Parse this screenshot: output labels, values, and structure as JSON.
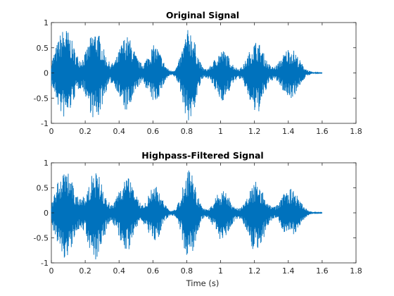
{
  "figure": {
    "background": "#ffffff",
    "series_color": "#0072bd",
    "axis_color": "#262626"
  },
  "chart_data": [
    {
      "type": "line",
      "title": "Original Signal",
      "xlabel": "",
      "ylabel": "",
      "xlim": [
        0,
        1.8
      ],
      "ylim": [
        -1,
        1
      ],
      "xticks": [
        0,
        0.2,
        0.4,
        0.6,
        0.8,
        1,
        1.2,
        1.4,
        1.6,
        1.8
      ],
      "yticks": [
        -1,
        -0.5,
        0,
        0.5,
        1
      ],
      "xtick_labels": [
        "0",
        "0.2",
        "0.4",
        "0.6",
        "0.8",
        "1",
        "1.2",
        "1.4",
        "1.6",
        "1.8"
      ],
      "ytick_labels": [
        "-1",
        "-0.5",
        "0",
        "0.5",
        "1"
      ],
      "grid": false,
      "series": [
        {
          "color": "#0072bd",
          "signal_end": 1.6,
          "bursts": [
            {
              "center": 0.08,
              "width": 0.05,
              "pos_peak": 0.89,
              "neg_peak": -0.91
            },
            {
              "center": 0.26,
              "width": 0.045,
              "pos_peak": 0.85,
              "neg_peak": -0.95
            },
            {
              "center": 0.445,
              "width": 0.045,
              "pos_peak": 0.73,
              "neg_peak": -0.77
            },
            {
              "center": 0.61,
              "width": 0.04,
              "pos_peak": 0.55,
              "neg_peak": -0.58
            },
            {
              "center": 0.815,
              "width": 0.038,
              "pos_peak": 0.88,
              "neg_peak": -0.98
            },
            {
              "center": 1.01,
              "width": 0.045,
              "pos_peak": 0.45,
              "neg_peak": -0.55
            },
            {
              "center": 1.21,
              "width": 0.045,
              "pos_peak": 0.63,
              "neg_peak": -0.82
            },
            {
              "center": 1.41,
              "width": 0.05,
              "pos_peak": 0.5,
              "neg_peak": -0.5
            }
          ]
        }
      ]
    },
    {
      "type": "line",
      "title": "Highpass-Filtered Signal",
      "xlabel": "Time (s)",
      "ylabel": "",
      "xlim": [
        0,
        1.8
      ],
      "ylim": [
        -1,
        1
      ],
      "xticks": [
        0,
        0.2,
        0.4,
        0.6,
        0.8,
        1,
        1.2,
        1.4,
        1.6,
        1.8
      ],
      "yticks": [
        -1,
        -0.5,
        0,
        0.5,
        1
      ],
      "xtick_labels": [
        "0",
        "0.2",
        "0.4",
        "0.6",
        "0.8",
        "1",
        "1.2",
        "1.4",
        "1.6",
        "1.8"
      ],
      "ytick_labels": [
        "-1",
        "-0.5",
        "0",
        "0.5",
        "1"
      ],
      "grid": false,
      "series": [
        {
          "color": "#0072bd",
          "signal_end": 1.6,
          "bursts": [
            {
              "center": 0.08,
              "width": 0.05,
              "pos_peak": 0.88,
              "neg_peak": -0.9
            },
            {
              "center": 0.26,
              "width": 0.045,
              "pos_peak": 0.84,
              "neg_peak": -0.94
            },
            {
              "center": 0.445,
              "width": 0.045,
              "pos_peak": 0.72,
              "neg_peak": -0.76
            },
            {
              "center": 0.61,
              "width": 0.04,
              "pos_peak": 0.55,
              "neg_peak": -0.57
            },
            {
              "center": 0.815,
              "width": 0.038,
              "pos_peak": 0.87,
              "neg_peak": -0.97
            },
            {
              "center": 1.01,
              "width": 0.045,
              "pos_peak": 0.44,
              "neg_peak": -0.54
            },
            {
              "center": 1.21,
              "width": 0.045,
              "pos_peak": 0.62,
              "neg_peak": -0.81
            },
            {
              "center": 1.41,
              "width": 0.05,
              "pos_peak": 0.49,
              "neg_peak": -0.49
            }
          ]
        }
      ]
    }
  ]
}
